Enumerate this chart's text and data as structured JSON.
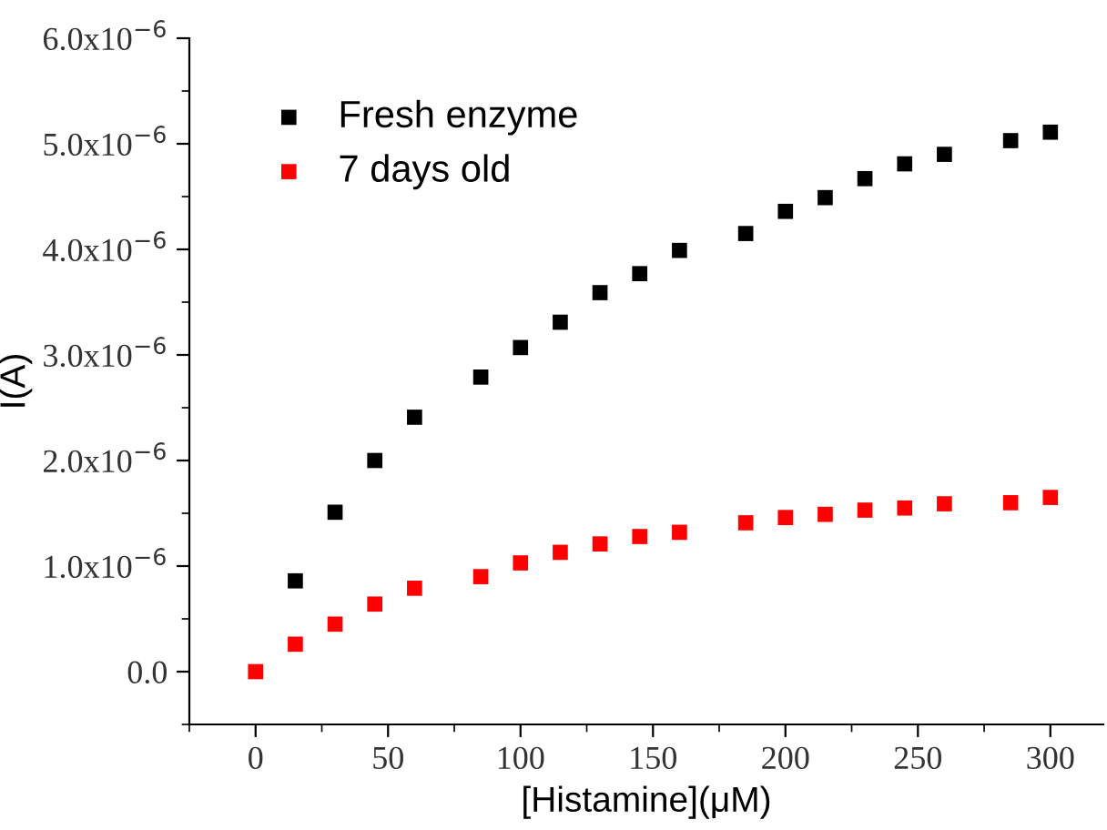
{
  "chart_data": {
    "type": "scatter",
    "xlabel": "[Histamine](μM)",
    "ylabel": "I(A)",
    "x": [
      0,
      15,
      30,
      45,
      60,
      85,
      100,
      115,
      130,
      145,
      160,
      185,
      200,
      215,
      230,
      245,
      260,
      285,
      300
    ],
    "series": [
      {
        "name": "Fresh enzyme",
        "color": "#000000",
        "values": [
          null,
          8.6e-07,
          1.51e-06,
          2e-06,
          2.41e-06,
          2.79e-06,
          3.07e-06,
          3.31e-06,
          3.59e-06,
          3.77e-06,
          3.99e-06,
          4.15e-06,
          4.36e-06,
          4.49e-06,
          4.67e-06,
          4.81e-06,
          4.9e-06,
          5.03e-06,
          5.11e-06
        ]
      },
      {
        "name": "7 days old",
        "color": "#ff0000",
        "values": [
          0,
          2.6e-07,
          4.5e-07,
          6.4e-07,
          7.9e-07,
          9e-07,
          1.03e-06,
          1.13e-06,
          1.21e-06,
          1.28e-06,
          1.32e-06,
          1.41e-06,
          1.46e-06,
          1.49e-06,
          1.53e-06,
          1.55e-06,
          1.59e-06,
          1.6e-06,
          1.65e-06
        ]
      }
    ],
    "xlim": [
      -25,
      320
    ],
    "ylim": [
      -5e-07,
      6e-06
    ],
    "xticks": [
      {
        "value": -25,
        "label": null
      },
      0,
      {
        "value": 25,
        "label": null
      },
      50,
      {
        "value": 75,
        "label": null
      },
      100,
      {
        "value": 125,
        "label": null
      },
      150,
      {
        "value": 175,
        "label": null
      },
      200,
      {
        "value": 225,
        "label": null
      },
      250,
      {
        "value": 275,
        "label": null
      },
      300
    ],
    "yticks": [
      {
        "value": -5e-07,
        "label": null
      },
      {
        "value": 0,
        "label": "0.0"
      },
      {
        "value": 5e-07,
        "label": null
      },
      {
        "value": 1e-06,
        "label": "1.0x10$^{−6}$"
      },
      {
        "value": 1.5e-06,
        "label": null
      },
      {
        "value": 2e-06,
        "label": "2.0x10$^{−6}$"
      },
      {
        "value": 2.5e-06,
        "label": null
      },
      {
        "value": 3e-06,
        "label": "3.0x10$^{−6}$"
      },
      {
        "value": 3.5e-06,
        "label": null
      },
      {
        "value": 4e-06,
        "label": "4.0x10$^{−6}$"
      },
      {
        "value": 4.5e-06,
        "label": null
      },
      {
        "value": 5e-06,
        "label": "5.0x10$^{−6}$"
      },
      {
        "value": 5.5e-06,
        "label": null
      },
      {
        "value": 6e-06,
        "label": "6.0x10$^{−6}$"
      }
    ],
    "marker": "square",
    "legend": "top left",
    "grid": false
  }
}
